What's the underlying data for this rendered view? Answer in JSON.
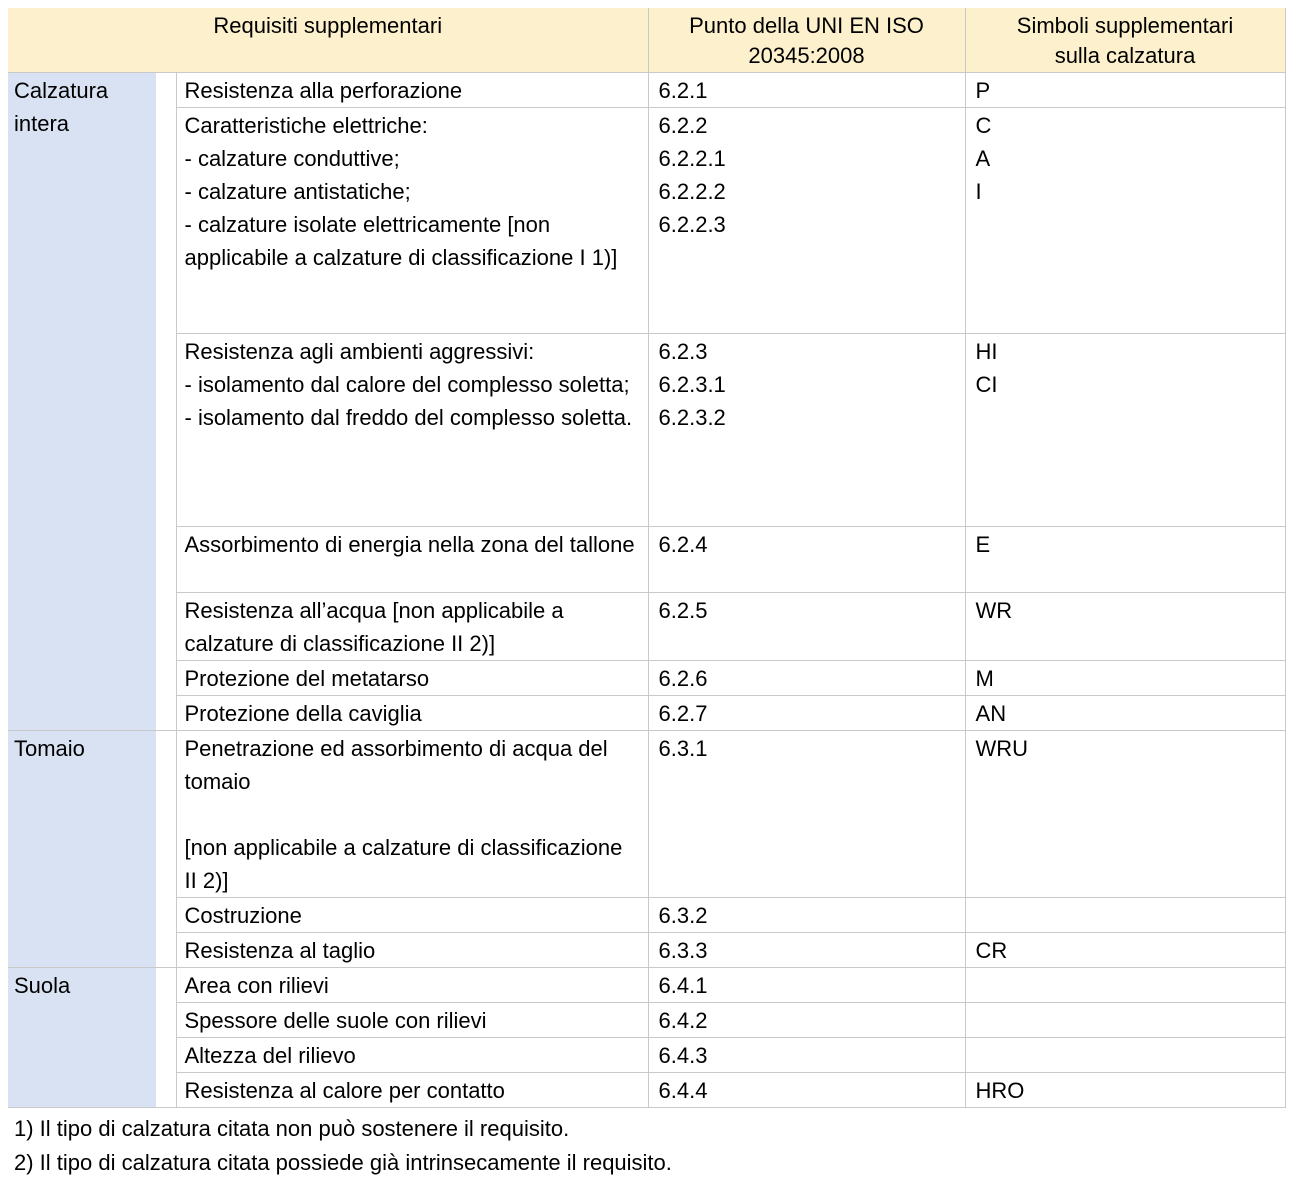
{
  "colors": {
    "header_bg": "#FCF1CC",
    "category_bg": "#D9E2F3",
    "border": "#C9C9C9",
    "text": "#000000"
  },
  "header": {
    "requisiti": "Requisiti supplementari",
    "punto": "Punto della UNI EN ISO\n20345:2008",
    "simboli": "Simboli supplementari\nsulla calzatura"
  },
  "groups": [
    {
      "category": "Calzatura intera",
      "rows": [
        {
          "requisito": "Resistenza alla perforazione",
          "punto": "6.2.1",
          "simboli": "P"
        },
        {
          "requisito": "Caratteristiche elettriche:\n- calzature conduttive;\n- calzature antistatiche;\n- calzature isolate elettricamente [non applicabile a calzature di classificazione I 1)]",
          "punto": "6.2.2\n6.2.2.1\n6.2.2.2\n6.2.2.3",
          "simboli": "C\nA\nI"
        },
        {
          "requisito": "Resistenza agli ambienti aggressivi:\n- isolamento dal calore del complesso soletta;\n- isolamento dal freddo del complesso soletta.",
          "punto": "6.2.3\n6.2.3.1\n6.2.3.2",
          "simboli": "HI\nCI"
        },
        {
          "requisito": "Assorbimento di energia nella zona del tallone",
          "punto": "6.2.4",
          "simboli": "E"
        },
        {
          "requisito": "Resistenza all’acqua [non applicabile a calzature di classificazione II 2)]",
          "punto": "6.2.5",
          "simboli": "WR"
        },
        {
          "requisito": "Protezione del metatarso",
          "punto": "6.2.6",
          "simboli": "M"
        },
        {
          "requisito": "Protezione della caviglia",
          "punto": "6.2.7",
          "simboli": "AN"
        }
      ]
    },
    {
      "category": "Tomaio",
      "rows": [
        {
          "requisito": "Penetrazione ed assorbimento di acqua del tomaio\n\n[non applicabile a calzature di classificazione II 2)]",
          "punto": "6.3.1",
          "simboli": "WRU"
        },
        {
          "requisito": "Costruzione",
          "punto": "6.3.2",
          "simboli": ""
        },
        {
          "requisito": "Resistenza al taglio",
          "punto": "6.3.3",
          "simboli": "CR"
        }
      ]
    },
    {
      "category": "Suola",
      "rows": [
        {
          "requisito": "Area con rilievi",
          "punto": "6.4.1",
          "simboli": ""
        },
        {
          "requisito": "Spessore delle suole con rilievi",
          "punto": "6.4.2",
          "simboli": ""
        },
        {
          "requisito": "Altezza del rilievo",
          "punto": "6.4.3",
          "simboli": ""
        },
        {
          "requisito": "Resistenza al calore per contatto",
          "punto": "6.4.4",
          "simboli": "HRO"
        }
      ]
    }
  ],
  "footnotes": [
    "1) Il tipo di calzatura citata non può sostenere il requisito.",
    "2) Il tipo di calzatura citata possiede già intrinsecamente il requisito."
  ]
}
